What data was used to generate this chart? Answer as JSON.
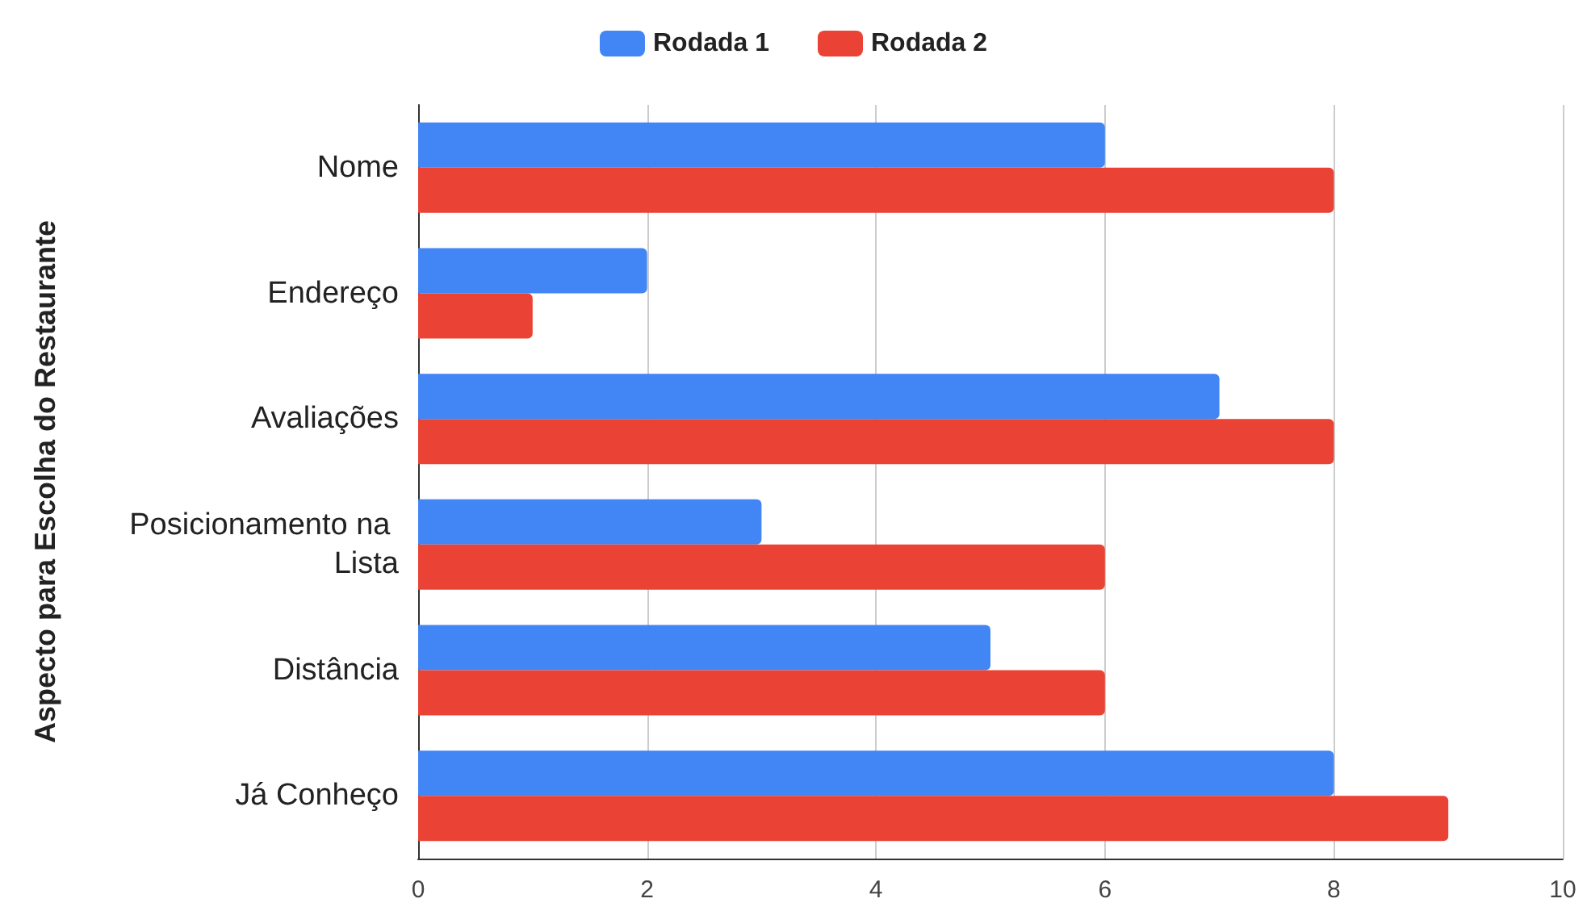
{
  "chart_data": {
    "type": "bar",
    "orientation": "horizontal",
    "ylabel": "Aspecto para Escolha do Restaurante",
    "categories": [
      "Nome",
      "Endereço",
      "Avaliações",
      "Posicionamento na Lista",
      "Distância",
      "Já Conheço"
    ],
    "series": [
      {
        "name": "Rodada 1",
        "color": "#4285f4",
        "values": [
          6,
          2,
          7,
          3,
          5,
          8
        ]
      },
      {
        "name": "Rodada 2",
        "color": "#ea4335",
        "values": [
          8,
          1,
          8,
          6,
          6,
          9
        ]
      }
    ],
    "xlim": [
      0,
      10
    ],
    "xticks": [
      0,
      2,
      4,
      6,
      8,
      10
    ],
    "grid": "x",
    "legend": "top"
  }
}
